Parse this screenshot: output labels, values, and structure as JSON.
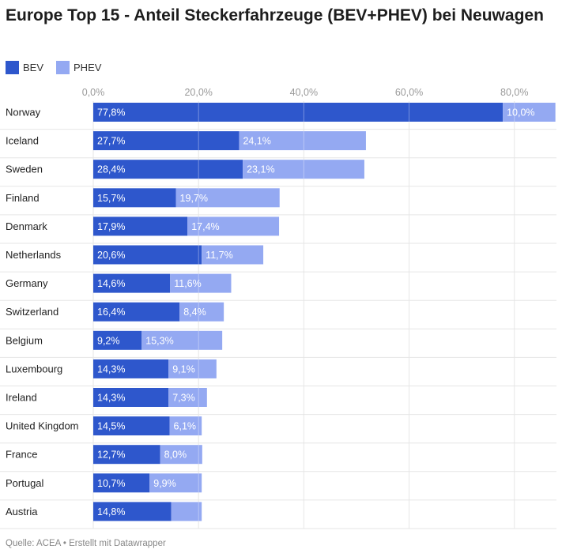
{
  "title": "Europe Top 15 - Anteil Steckerfahrzeuge (BEV+PHEV) bei Neuwagen",
  "source": "Quelle: ACEA • Erstellt mit Datawrapper",
  "colors": {
    "bev": "#2e57cc",
    "phev": "#94a9f2",
    "grid": "#e6e6e6",
    "tick": "#9a9a9a"
  },
  "chart_data": {
    "type": "bar",
    "orientation": "horizontal",
    "stacked": true,
    "title": "Europe Top 15 - Anteil Steckerfahrzeuge (BEV+PHEV) bei Neuwagen",
    "legend": {
      "placement": "top-left",
      "entries": [
        "BEV",
        "PHEV"
      ]
    },
    "x_ticks": [
      "0,0%",
      "20,0%",
      "40,0%",
      "60,0%",
      "80,0%"
    ],
    "x_tick_values": [
      0,
      20,
      40,
      60,
      80
    ],
    "xlim": [
      0,
      88
    ],
    "grid": true,
    "categories": [
      "Norway",
      "Iceland",
      "Sweden",
      "Finland",
      "Denmark",
      "Netherlands",
      "Germany",
      "Switzerland",
      "Belgium",
      "Luxembourg",
      "Ireland",
      "United Kingdom",
      "France",
      "Portugal",
      "Austria"
    ],
    "series": [
      {
        "name": "BEV",
        "values": [
          77.8,
          27.7,
          28.4,
          15.7,
          17.9,
          20.6,
          14.6,
          16.4,
          9.2,
          14.3,
          14.3,
          14.5,
          12.7,
          10.7,
          14.8
        ],
        "labels": [
          "77,8%",
          "27,7%",
          "28,4%",
          "15,7%",
          "17,9%",
          "20,6%",
          "14,6%",
          "16,4%",
          "9,2%",
          "14,3%",
          "14,3%",
          "14,5%",
          "12,7%",
          "10,7%",
          "14,8%"
        ]
      },
      {
        "name": "PHEV",
        "values": [
          10.0,
          24.1,
          23.1,
          19.7,
          17.4,
          11.7,
          11.6,
          8.4,
          15.3,
          9.1,
          7.3,
          6.1,
          8.0,
          9.9,
          5.8
        ],
        "labels": [
          "10,0%",
          "24,1%",
          "23,1%",
          "19,7%",
          "17,4%",
          "11,7%",
          "11,6%",
          "8,4%",
          "15,3%",
          "9,1%",
          "7,3%",
          "6,1%",
          "8,0%",
          "9,9%",
          ""
        ]
      }
    ]
  }
}
